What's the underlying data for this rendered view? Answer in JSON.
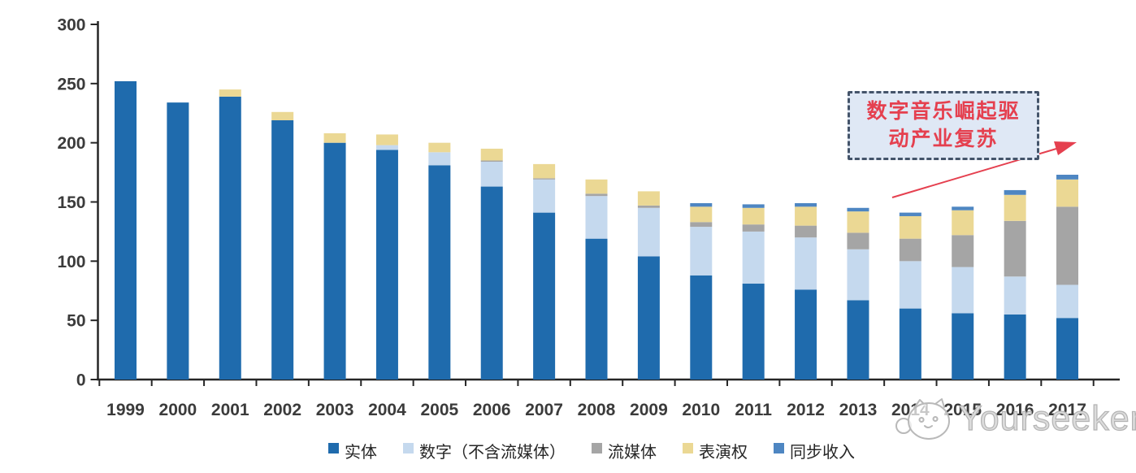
{
  "chart_data": {
    "type": "bar",
    "stacked": true,
    "title": "",
    "xlabel": "",
    "ylabel": "",
    "grid": false,
    "legend_position": "bottom",
    "ylim": [
      0,
      300
    ],
    "yticks": [
      0,
      50,
      100,
      150,
      200,
      250,
      300
    ],
    "categories": [
      "1999",
      "2000",
      "2001",
      "2002",
      "2003",
      "2004",
      "2005",
      "2006",
      "2007",
      "2008",
      "2009",
      "2010",
      "2011",
      "2012",
      "2013",
      "2014",
      "2015",
      "2016",
      "2017"
    ],
    "series": [
      {
        "key": "physical",
        "name": "实体",
        "color": "#1F6BAD",
        "values": [
          252,
          234,
          239,
          219,
          200,
          194,
          181,
          163,
          141,
          119,
          104,
          88,
          81,
          76,
          67,
          60,
          56,
          55,
          52
        ]
      },
      {
        "key": "digital-excl-streaming",
        "name": "数字（不含流媒体）",
        "color": "#C5D9EE",
        "values": [
          0,
          0,
          0,
          0,
          0,
          4,
          11,
          21,
          28,
          36,
          41,
          41,
          44,
          44,
          43,
          40,
          39,
          32,
          28
        ]
      },
      {
        "key": "streaming",
        "name": "流媒体",
        "color": "#A5A5A5",
        "values": [
          0,
          0,
          0,
          0,
          0,
          0,
          0,
          1,
          1,
          2,
          2,
          4,
          6,
          10,
          14,
          19,
          27,
          47,
          66
        ]
      },
      {
        "key": "performance-rights",
        "name": "表演权",
        "color": "#EBD894",
        "values": [
          0,
          0,
          6,
          7,
          8,
          9,
          8,
          10,
          12,
          12,
          12,
          13,
          14,
          16,
          18,
          19,
          21,
          22,
          23
        ]
      },
      {
        "key": "sync",
        "name": "同步收入",
        "color": "#4E86C2",
        "values": [
          0,
          0,
          0,
          0,
          0,
          0,
          0,
          0,
          0,
          0,
          0,
          3,
          3,
          3,
          3,
          3,
          3,
          4,
          4
        ]
      }
    ]
  },
  "annotation": {
    "line1": "数字音乐崛起驱",
    "line2": "动产业复苏",
    "text": "数字音乐崛起驱动产业复苏",
    "text_color": "#E5404F",
    "bg_color": "#DFE8F5",
    "border_color": "#44546A",
    "arrow_color": "#E5404F"
  },
  "watermark": {
    "brand": "Yourseeker",
    "logo": "cat-logo-icon"
  }
}
